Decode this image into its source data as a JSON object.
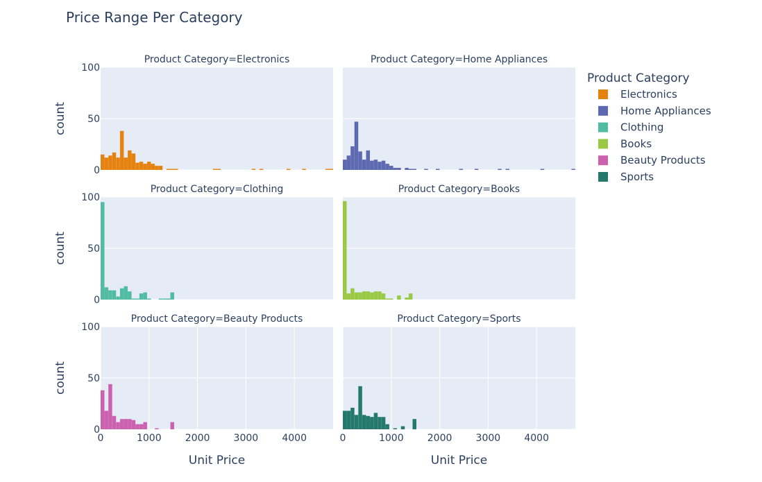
{
  "chart_data": {
    "type": "bar",
    "title": "Price Range Per Category",
    "xlabel": "Unit Price",
    "ylabel": "count",
    "xlim": [
      0,
      4800
    ],
    "ylim": [
      0,
      100
    ],
    "xticks": [
      0,
      1000,
      2000,
      3000,
      4000
    ],
    "xtick_labels": [
      "0",
      "1000",
      "2000",
      "3000",
      "4000"
    ],
    "yticks": [
      0,
      50,
      100
    ],
    "ytick_labels": [
      "0",
      "50",
      "100"
    ],
    "bin_width": 80,
    "grid": true,
    "legend": {
      "title": "Product Category",
      "placement": "right"
    },
    "facets": [
      {
        "name": "Electronics",
        "title": "Product Category=Electronics",
        "color": "#E68310",
        "bins": [
          [
            0,
            15
          ],
          [
            80,
            12
          ],
          [
            160,
            14
          ],
          [
            240,
            17
          ],
          [
            320,
            12
          ],
          [
            400,
            38
          ],
          [
            480,
            12
          ],
          [
            560,
            19
          ],
          [
            640,
            16
          ],
          [
            720,
            7
          ],
          [
            800,
            8
          ],
          [
            880,
            6
          ],
          [
            960,
            8
          ],
          [
            1040,
            6
          ],
          [
            1120,
            4
          ],
          [
            1200,
            4
          ],
          [
            1360,
            1
          ],
          [
            1440,
            1
          ],
          [
            1520,
            1
          ],
          [
            2320,
            1
          ],
          [
            2400,
            1
          ],
          [
            3120,
            1
          ],
          [
            3280,
            1
          ],
          [
            3840,
            1
          ],
          [
            4160,
            1
          ],
          [
            4640,
            1
          ],
          [
            4720,
            1
          ]
        ]
      },
      {
        "name": "Home Appliances",
        "title": "Product Category=Home Appliances",
        "color": "#5D69B1",
        "bins": [
          [
            0,
            10
          ],
          [
            80,
            14
          ],
          [
            160,
            23
          ],
          [
            240,
            47
          ],
          [
            320,
            18
          ],
          [
            400,
            10
          ],
          [
            480,
            19
          ],
          [
            560,
            9
          ],
          [
            640,
            10
          ],
          [
            720,
            8
          ],
          [
            800,
            9
          ],
          [
            880,
            6
          ],
          [
            960,
            4
          ],
          [
            1040,
            2
          ],
          [
            1120,
            2
          ],
          [
            1280,
            2
          ],
          [
            1360,
            1
          ],
          [
            1440,
            1
          ],
          [
            1680,
            1
          ],
          [
            1920,
            1
          ],
          [
            2400,
            1
          ],
          [
            2720,
            1
          ],
          [
            3200,
            1
          ],
          [
            3360,
            1
          ],
          [
            4080,
            1
          ],
          [
            4720,
            1
          ]
        ]
      },
      {
        "name": "Clothing",
        "title": "Product Category=Clothing",
        "color": "#52BCA3",
        "bins": [
          [
            0,
            95
          ],
          [
            80,
            12
          ],
          [
            160,
            9
          ],
          [
            240,
            9
          ],
          [
            320,
            3
          ],
          [
            400,
            11
          ],
          [
            480,
            13
          ],
          [
            560,
            8
          ],
          [
            640,
            1
          ],
          [
            720,
            1
          ],
          [
            800,
            6
          ],
          [
            880,
            7
          ],
          [
            960,
            1
          ],
          [
            1200,
            1
          ],
          [
            1280,
            1
          ],
          [
            1360,
            1
          ],
          [
            1440,
            7
          ]
        ]
      },
      {
        "name": "Books",
        "title": "Product Category=Books",
        "color": "#99C945",
        "bins": [
          [
            0,
            96
          ],
          [
            80,
            6
          ],
          [
            160,
            11
          ],
          [
            240,
            7
          ],
          [
            320,
            7
          ],
          [
            400,
            8
          ],
          [
            480,
            8
          ],
          [
            560,
            7
          ],
          [
            640,
            8
          ],
          [
            720,
            8
          ],
          [
            800,
            6
          ],
          [
            880,
            1
          ],
          [
            960,
            1
          ],
          [
            1120,
            4
          ],
          [
            1280,
            2
          ],
          [
            1360,
            6
          ]
        ]
      },
      {
        "name": "Beauty Products",
        "title": "Product Category=Beauty Products",
        "color": "#CC61B0",
        "bins": [
          [
            0,
            38
          ],
          [
            80,
            18
          ],
          [
            160,
            44
          ],
          [
            240,
            13
          ],
          [
            320,
            7
          ],
          [
            400,
            10
          ],
          [
            480,
            10
          ],
          [
            560,
            10
          ],
          [
            640,
            9
          ],
          [
            720,
            5
          ],
          [
            800,
            5
          ],
          [
            880,
            7
          ],
          [
            1120,
            1
          ],
          [
            1440,
            7
          ]
        ]
      },
      {
        "name": "Sports",
        "title": "Product Category=Sports",
        "color": "#24796C",
        "bins": [
          [
            0,
            18
          ],
          [
            80,
            18
          ],
          [
            160,
            21
          ],
          [
            240,
            14
          ],
          [
            320,
            42
          ],
          [
            400,
            14
          ],
          [
            480,
            13
          ],
          [
            560,
            12
          ],
          [
            640,
            16
          ],
          [
            720,
            12
          ],
          [
            800,
            12
          ],
          [
            880,
            5
          ],
          [
            1040,
            1
          ],
          [
            1200,
            3
          ],
          [
            1440,
            10
          ]
        ]
      }
    ]
  }
}
